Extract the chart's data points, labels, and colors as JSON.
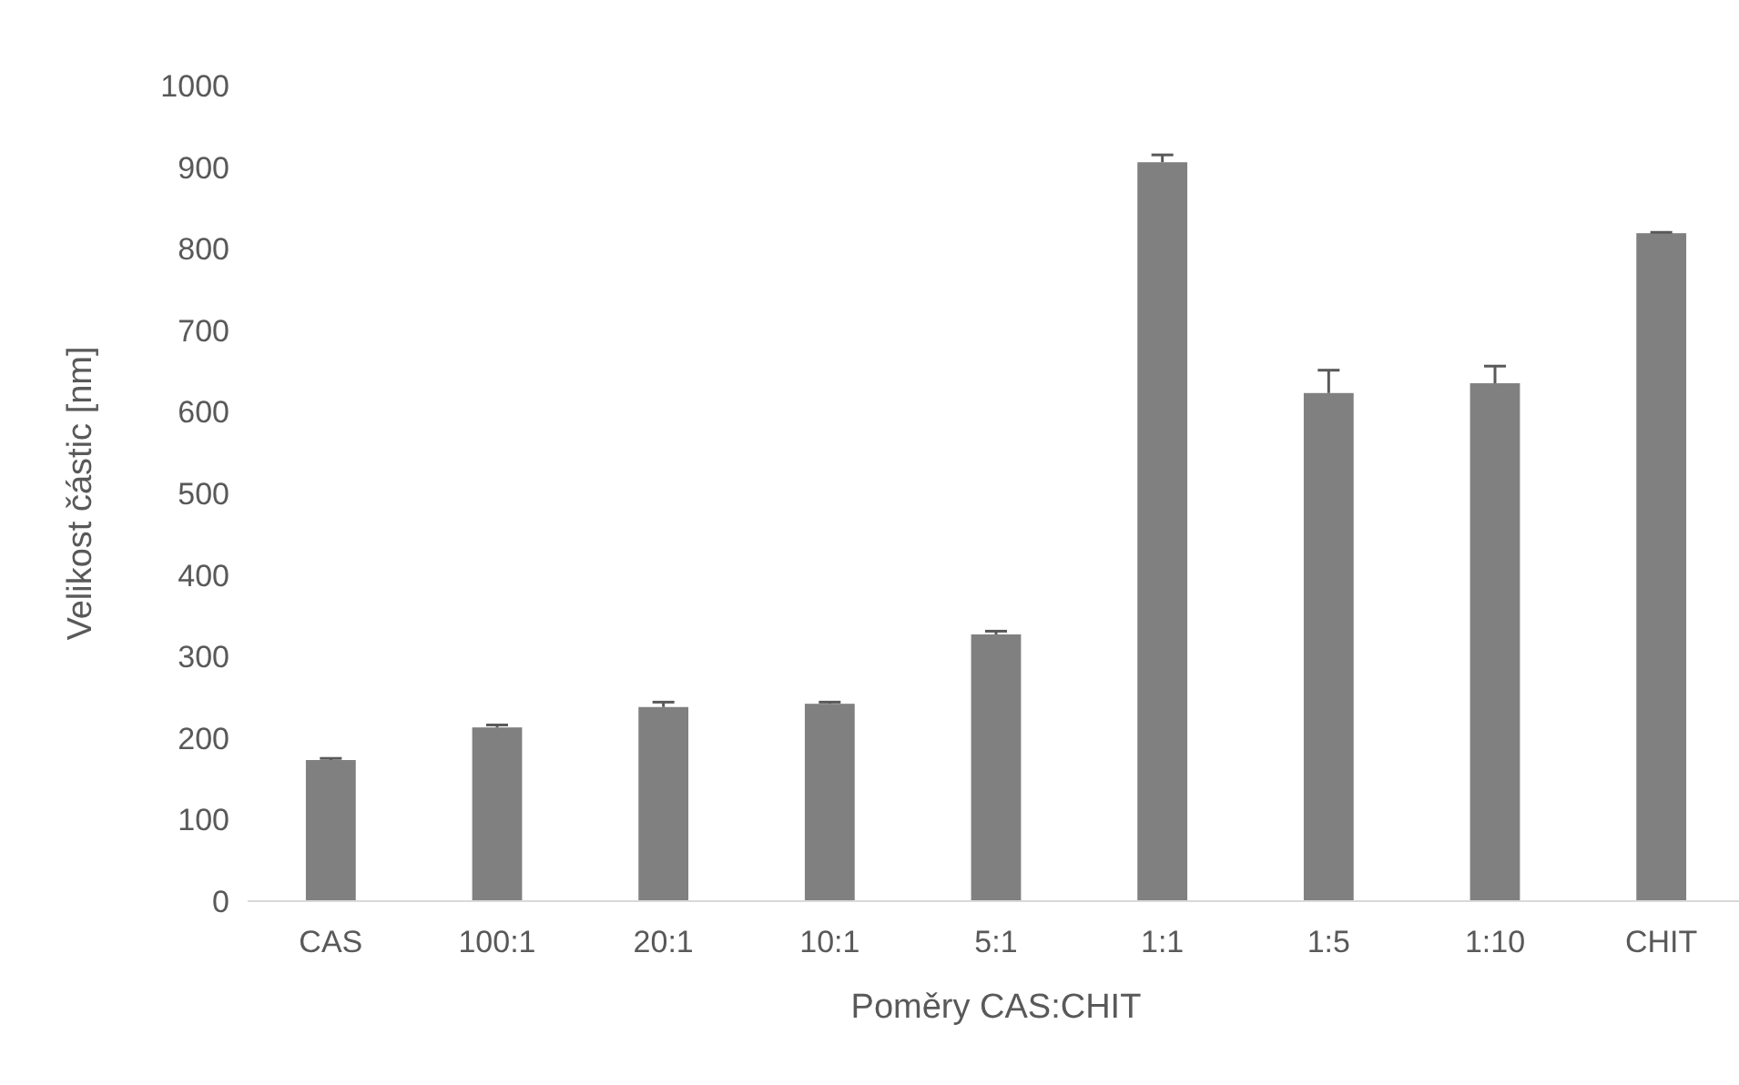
{
  "chart_data": {
    "type": "bar",
    "xlabel": "Poměry CAS:CHIT",
    "ylabel": "Velikost částic [nm]",
    "categories": [
      "CAS",
      "100:1",
      "20:1",
      "10:1",
      "5:1",
      "1:1",
      "1:5",
      "1:10",
      "CHIT"
    ],
    "values": [
      173,
      213,
      238,
      242,
      327,
      906,
      623,
      635,
      819
    ],
    "errors": [
      [
        173,
        175
      ],
      [
        213,
        216
      ],
      [
        238,
        244
      ],
      [
        242,
        244
      ],
      [
        327,
        331
      ],
      [
        906,
        915
      ],
      [
        623,
        651
      ],
      [
        635,
        656
      ],
      [
        819,
        820
      ]
    ],
    "color": "#808080",
    "ylim": [
      0,
      1000
    ],
    "yticks": [
      0,
      100,
      200,
      300,
      400,
      500,
      600,
      700,
      800,
      900,
      1000
    ],
    "grid": false
  }
}
